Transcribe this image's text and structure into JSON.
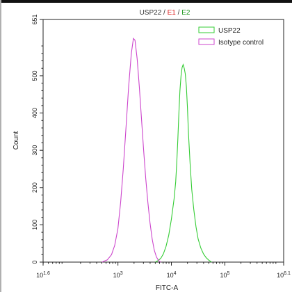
{
  "chart_data": {
    "type": "line",
    "title_parts": [
      {
        "text": "USP22",
        "color": "#333333"
      },
      {
        "text": " / ",
        "color": "#333333"
      },
      {
        "text": "E1",
        "color": "#dd2222"
      },
      {
        "text": " / ",
        "color": "#333333"
      },
      {
        "text": "E2",
        "color": "#229922"
      }
    ],
    "xlabel": "FITC-A",
    "ylabel": "Count",
    "x_scale": "log",
    "xlim_log10": [
      1.6,
      6.1
    ],
    "ylim": [
      0,
      651
    ],
    "x_ticks": [
      {
        "exp": 1.6,
        "base": "10",
        "sup": "1.6"
      },
      {
        "exp": 3,
        "base": "10",
        "sup": "3"
      },
      {
        "exp": 4,
        "base": "10",
        "sup": "4"
      },
      {
        "exp": 5,
        "base": "10",
        "sup": "5"
      },
      {
        "exp": 6.1,
        "base": "10",
        "sup": "6.1"
      }
    ],
    "y_ticks": [
      "0",
      "100",
      "200",
      "300",
      "400",
      "500",
      "651"
    ],
    "legend_position": "top-right",
    "series": [
      {
        "name": "USP22",
        "color": "#33cc33",
        "points": [
          [
            3.7,
            0
          ],
          [
            3.75,
            4
          ],
          [
            3.8,
            10
          ],
          [
            3.85,
            22
          ],
          [
            3.9,
            42
          ],
          [
            3.95,
            72
          ],
          [
            4.0,
            115
          ],
          [
            4.05,
            170
          ],
          [
            4.08,
            215
          ],
          [
            4.1,
            265
          ],
          [
            4.12,
            330
          ],
          [
            4.14,
            400
          ],
          [
            4.16,
            460
          ],
          [
            4.18,
            500
          ],
          [
            4.2,
            522
          ],
          [
            4.22,
            530
          ],
          [
            4.24,
            520
          ],
          [
            4.26,
            505
          ],
          [
            4.28,
            470
          ],
          [
            4.3,
            415
          ],
          [
            4.32,
            345
          ],
          [
            4.35,
            265
          ],
          [
            4.38,
            195
          ],
          [
            4.42,
            140
          ],
          [
            4.46,
            95
          ],
          [
            4.5,
            62
          ],
          [
            4.55,
            38
          ],
          [
            4.6,
            22
          ],
          [
            4.65,
            12
          ],
          [
            4.7,
            5
          ],
          [
            4.75,
            0
          ]
        ]
      },
      {
        "name": "Isotype control",
        "color": "#cc44cc",
        "points": [
          [
            2.7,
            0
          ],
          [
            2.8,
            6
          ],
          [
            2.88,
            20
          ],
          [
            2.94,
            45
          ],
          [
            3.0,
            90
          ],
          [
            3.05,
            160
          ],
          [
            3.1,
            250
          ],
          [
            3.15,
            360
          ],
          [
            3.2,
            470
          ],
          [
            3.25,
            560
          ],
          [
            3.29,
            600
          ],
          [
            3.32,
            595
          ],
          [
            3.36,
            545
          ],
          [
            3.4,
            470
          ],
          [
            3.44,
            385
          ],
          [
            3.48,
            300
          ],
          [
            3.52,
            225
          ],
          [
            3.56,
            160
          ],
          [
            3.6,
            105
          ],
          [
            3.64,
            62
          ],
          [
            3.68,
            32
          ],
          [
            3.72,
            14
          ],
          [
            3.76,
            4
          ],
          [
            3.8,
            0
          ]
        ]
      }
    ]
  }
}
